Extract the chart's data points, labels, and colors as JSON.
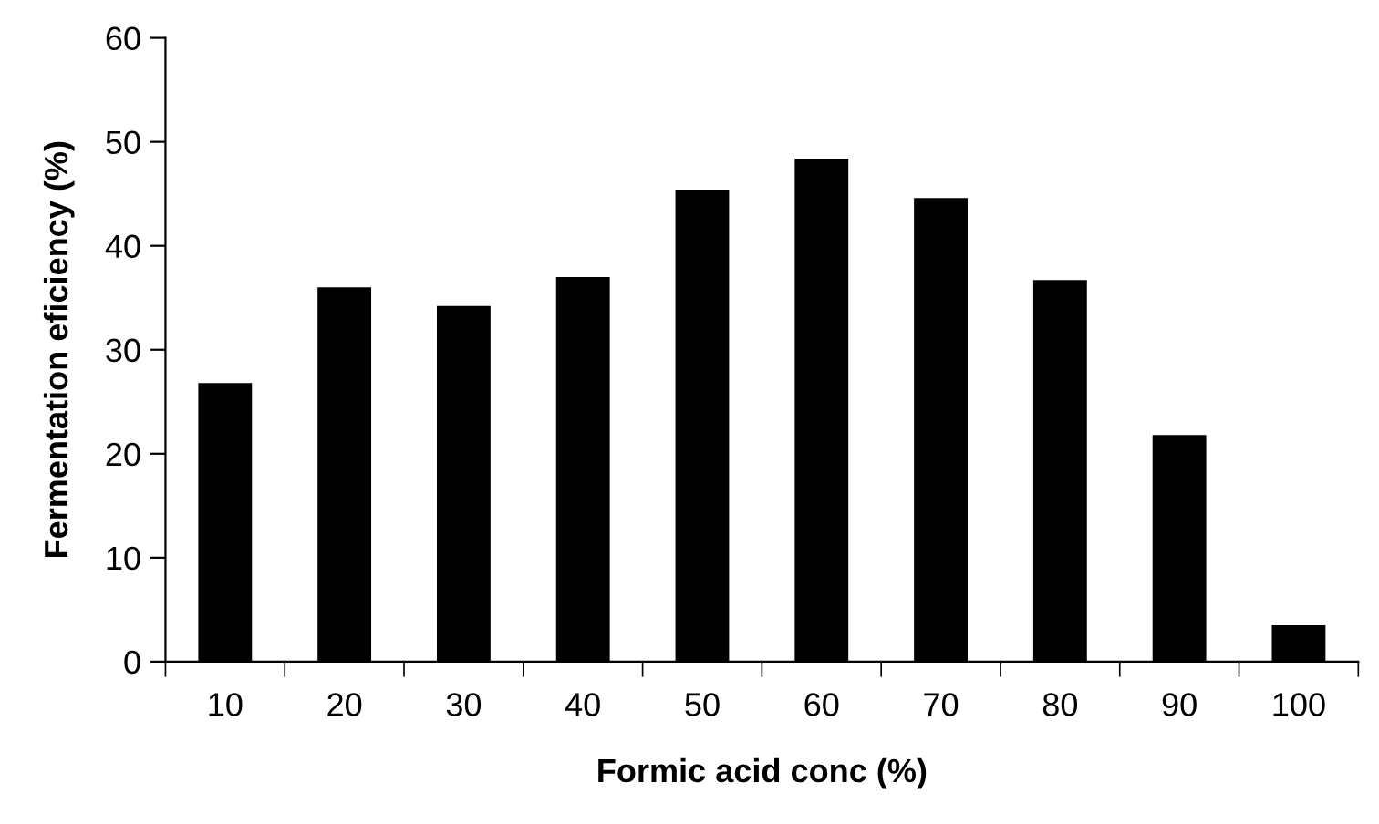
{
  "chart_data": {
    "type": "bar",
    "xlabel": "Formic acid conc (%)",
    "ylabel": "Fermentation eficiency (%)",
    "categories": [
      "10",
      "20",
      "30",
      "40",
      "50",
      "60",
      "70",
      "80",
      "90",
      "100"
    ],
    "values": [
      26.8,
      36.0,
      34.2,
      37.0,
      45.4,
      48.4,
      44.6,
      36.7,
      21.8,
      3.5
    ],
    "color": "#000000",
    "ylim": [
      0,
      60
    ],
    "yticks": [
      0,
      10,
      20,
      30,
      40,
      50,
      60
    ],
    "grid": false,
    "legend": false
  }
}
